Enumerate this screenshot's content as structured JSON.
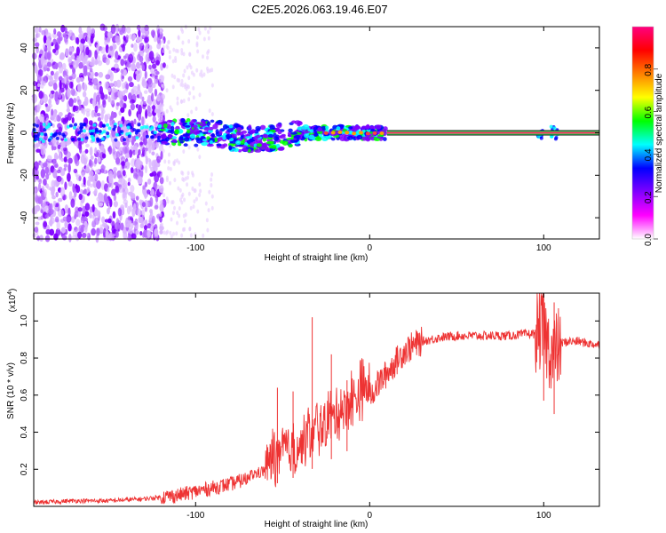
{
  "title": "C2E5.2026.063.19.46.E07",
  "colors": {
    "snr_line": "#ee3333",
    "spectral_cmap": [
      "#ffffff",
      "#ff00ff",
      "#8000ff",
      "#0000ff",
      "#00ffff",
      "#00ff00",
      "#ffff00",
      "#ff8000",
      "#ff0000",
      "#ff0080"
    ]
  },
  "chart_data": [
    {
      "type": "heatmap",
      "name": "spectrogram",
      "xlabel": "Height of straight line (km)",
      "ylabel": "Frequency (Hz)",
      "xlim": [
        -193,
        132
      ],
      "ylim": [
        -50,
        50
      ],
      "xticks": [
        -100,
        0,
        100
      ],
      "xtick_labels": [
        "-100",
        "0",
        "100"
      ],
      "yticks": [
        -40,
        -20,
        0,
        20,
        40
      ],
      "ytick_labels": [
        "-40",
        "-20",
        "0",
        "20",
        "40"
      ],
      "tone_band": {
        "x_start": 10,
        "x_end": 132,
        "freq": 0
      },
      "colorbar": {
        "label": "Normalized spectral amplitude",
        "range": [
          0,
          1
        ],
        "ticks": [
          0.0,
          0.2,
          0.4,
          0.6,
          0.8
        ],
        "tick_labels": [
          "0.0",
          "0.2",
          "0.4",
          "0.6",
          "0.8"
        ]
      }
    },
    {
      "type": "line",
      "name": "snr",
      "xlabel": "Height of straight line (km)",
      "ylabel": "SNR (10 * v/v)",
      "scale_note": "(x10",
      "scale_exp": "4",
      "xlim": [
        -193,
        132
      ],
      "ylim": [
        0,
        1.15
      ],
      "xticks": [
        -100,
        0,
        100
      ],
      "xtick_labels": [
        "-100",
        "0",
        "100"
      ],
      "yticks": [
        0.2,
        0.4,
        0.6,
        0.8,
        1.0
      ],
      "ytick_labels": [
        "0.2",
        "0.4",
        "0.6",
        "0.8",
        "1.0"
      ],
      "series": [
        {
          "name": "SNR",
          "x": [
            -193,
            -170,
            -150,
            -130,
            -120,
            -110,
            -100,
            -90,
            -80,
            -70,
            -60,
            -50,
            -45,
            -40,
            -35,
            -30,
            -25,
            -20,
            -15,
            -10,
            -5,
            0,
            5,
            10,
            15,
            20,
            30,
            40,
            50,
            60,
            70,
            80,
            90,
            95,
            98,
            100,
            102,
            105,
            108,
            110,
            115,
            120,
            125,
            132
          ],
          "values": [
            0.02,
            0.03,
            0.03,
            0.04,
            0.05,
            0.06,
            0.08,
            0.1,
            0.12,
            0.15,
            0.18,
            0.22,
            0.25,
            0.28,
            0.32,
            0.36,
            0.4,
            0.44,
            0.48,
            0.52,
            0.56,
            0.6,
            0.66,
            0.72,
            0.78,
            0.84,
            0.89,
            0.91,
            0.92,
            0.92,
            0.92,
            0.92,
            0.93,
            0.93,
            0.95,
            0.95,
            0.88,
            0.82,
            0.85,
            0.88,
            0.89,
            0.89,
            0.88,
            0.87
          ]
        }
      ],
      "spikes": [
        {
          "x": -53,
          "value": 0.64
        },
        {
          "x": -44,
          "value": 0.62
        },
        {
          "x": -33,
          "value": 1.02
        },
        {
          "x": -22,
          "value": 0.82
        },
        {
          "x": -13,
          "value": 0.68
        },
        {
          "x": 100,
          "value": 1.15
        },
        {
          "x": 106,
          "value": 1.1
        }
      ]
    }
  ]
}
